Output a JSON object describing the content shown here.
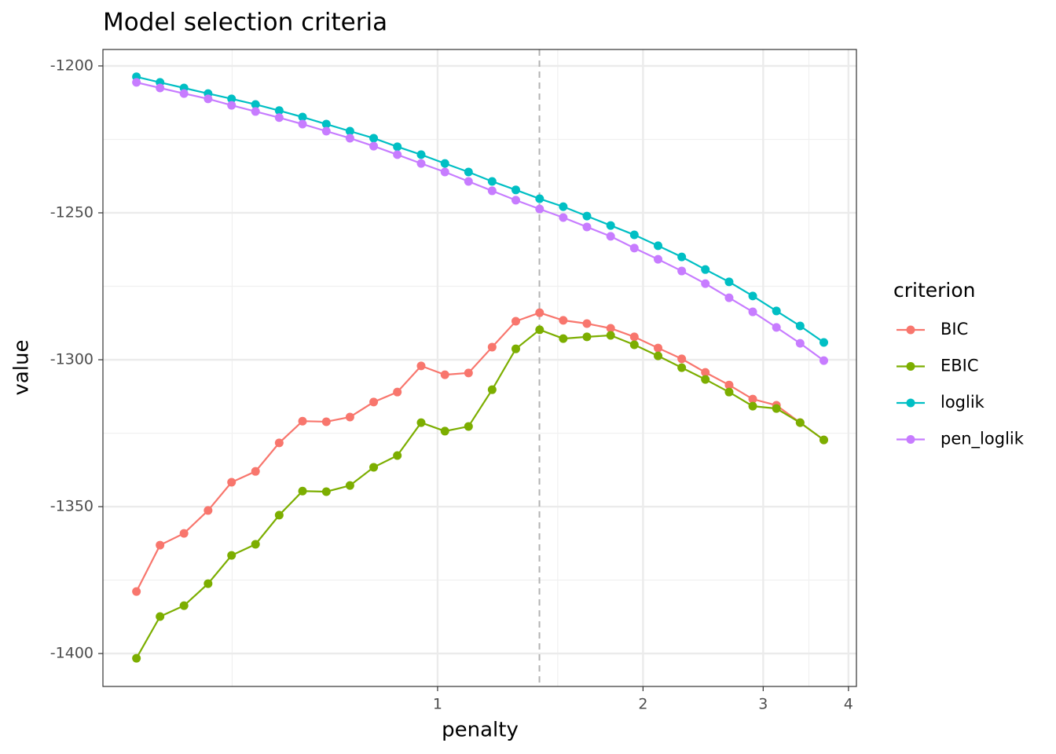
{
  "chart_data": {
    "type": "line",
    "title": "Model selection criteria",
    "x_label": "penalty",
    "y_label": "value",
    "x": [
      0.362,
      0.392,
      0.425,
      0.461,
      0.499,
      0.541,
      0.586,
      0.634,
      0.687,
      0.744,
      0.806,
      0.873,
      0.946,
      1.025,
      1.11,
      1.202,
      1.302,
      1.411,
      1.528,
      1.655,
      1.793,
      1.942,
      2.104,
      2.279,
      2.468,
      2.674,
      2.896,
      3.137,
      3.398,
      3.681
    ],
    "series": [
      {
        "name": "BIC",
        "color": "#F8766D",
        "values": [
          -1378.9,
          -1363.1,
          -1359.1,
          -1351.3,
          -1341.7,
          -1338.0,
          -1328.3,
          -1320.9,
          -1321.1,
          -1319.5,
          -1314.4,
          -1311.0,
          -1302.1,
          -1305.1,
          -1304.5,
          -1295.7,
          -1286.9,
          -1284.0,
          -1286.6,
          -1287.7,
          -1289.3,
          -1292.2,
          -1296.0,
          -1299.7,
          -1304.3,
          -1308.6,
          -1313.4,
          -1315.5,
          -1321.4,
          -1327.3
        ]
      },
      {
        "name": "EBIC",
        "color": "#7CAE00",
        "values": [
          -1401.6,
          -1387.4,
          -1383.7,
          -1376.2,
          -1366.6,
          -1362.8,
          -1352.9,
          -1344.7,
          -1344.9,
          -1342.8,
          -1336.6,
          -1332.6,
          -1321.4,
          -1324.3,
          -1322.7,
          -1310.2,
          -1296.3,
          -1289.8,
          -1292.8,
          -1292.2,
          -1291.7,
          -1294.9,
          -1298.7,
          -1302.7,
          -1306.7,
          -1311.0,
          -1315.8,
          -1316.6,
          -1321.4,
          -1327.3
        ]
      },
      {
        "name": "loglik",
        "color": "#00BFC4",
        "values": [
          -1203.7,
          -1205.6,
          -1207.5,
          -1209.4,
          -1211.2,
          -1213.1,
          -1215.2,
          -1217.4,
          -1219.8,
          -1222.2,
          -1224.6,
          -1227.5,
          -1230.2,
          -1233.2,
          -1236.1,
          -1239.3,
          -1242.2,
          -1245.2,
          -1247.9,
          -1251.1,
          -1254.3,
          -1257.5,
          -1261.2,
          -1265.0,
          -1269.3,
          -1273.5,
          -1278.3,
          -1283.4,
          -1288.5,
          -1294.1
        ]
      },
      {
        "name": "pen_loglik",
        "color": "#C77CFF",
        "values": [
          -1205.6,
          -1207.5,
          -1209.4,
          -1211.2,
          -1213.4,
          -1215.5,
          -1217.6,
          -1219.8,
          -1222.2,
          -1224.6,
          -1227.3,
          -1230.2,
          -1233.2,
          -1236.1,
          -1239.3,
          -1242.5,
          -1245.7,
          -1248.7,
          -1251.6,
          -1254.8,
          -1258.0,
          -1262.0,
          -1265.8,
          -1269.8,
          -1274.1,
          -1278.9,
          -1283.7,
          -1289.0,
          -1294.4,
          -1300.3
        ]
      }
    ],
    "legend_title": "criterion",
    "legend": "right",
    "xscale": "log",
    "xlim": [
      0.3233,
      4.109
    ],
    "xticks": [
      1,
      2,
      3,
      4
    ],
    "xminor": [
      0.5,
      1.5,
      3.5
    ],
    "ylim": [
      -1411.2,
      -1194.4
    ],
    "yticks": [
      -1400,
      -1350,
      -1300,
      -1250,
      -1200
    ],
    "yminor": [
      -1375,
      -1325,
      -1275,
      -1225
    ],
    "vline": 1.41,
    "grid": true
  }
}
